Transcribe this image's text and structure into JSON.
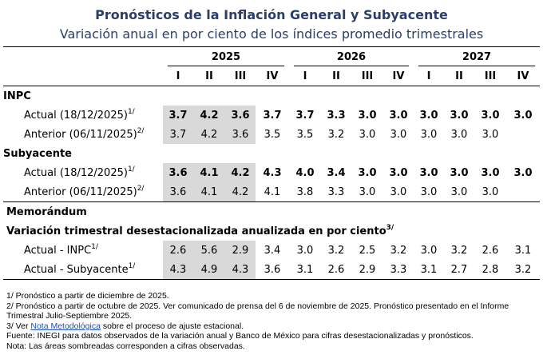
{
  "title": "Pronósticos de la Inflación General y Subyacente",
  "subtitle": "Variación anual en por ciento de los índices promedio trimestrales",
  "years": [
    "2025",
    "2026",
    "2027"
  ],
  "quarters": [
    "I",
    "II",
    "III",
    "IV",
    "I",
    "II",
    "III",
    "IV",
    "I",
    "II",
    "III",
    "IV"
  ],
  "sections": {
    "inpc": "INPC",
    "subyacente": "Subyacente",
    "memorandum": "Memorándum",
    "variacion": "Variación trimestral desestacionalizada anualizada en por ciento"
  },
  "rows": {
    "inpc_actual": {
      "label": "Actual (18/12/2025)",
      "sup": "1/",
      "values": [
        "3.7",
        "4.2",
        "3.6",
        "3.7",
        "3.7",
        "3.3",
        "3.0",
        "3.0",
        "3.0",
        "3.0",
        "3.0",
        "3.0"
      ]
    },
    "inpc_anterior": {
      "label": "Anterior (06/11/2025)",
      "sup": "2/",
      "values": [
        "3.7",
        "4.2",
        "3.6",
        "3.5",
        "3.5",
        "3.2",
        "3.0",
        "3.0",
        "3.0",
        "3.0",
        "3.0"
      ]
    },
    "sub_actual": {
      "label": "Actual (18/12/2025)",
      "sup": "1/",
      "values": [
        "3.6",
        "4.1",
        "4.2",
        "4.3",
        "4.0",
        "3.4",
        "3.0",
        "3.0",
        "3.0",
        "3.0",
        "3.0",
        "3.0"
      ]
    },
    "sub_anterior": {
      "label": "Anterior (06/11/2025)",
      "sup": "2/",
      "values": [
        "3.6",
        "4.1",
        "4.2",
        "4.1",
        "3.8",
        "3.3",
        "3.0",
        "3.0",
        "3.0",
        "3.0",
        "3.0"
      ]
    },
    "memo_inpc": {
      "label": "Actual - INPC",
      "sup": "1/",
      "values": [
        "2.6",
        "5.6",
        "2.9",
        "3.4",
        "3.0",
        "3.2",
        "2.5",
        "3.2",
        "3.0",
        "3.2",
        "2.6",
        "3.1"
      ]
    },
    "memo_sub": {
      "label": "Actual - Subyacente",
      "sup": "1/",
      "values": [
        "4.3",
        "4.9",
        "4.3",
        "3.6",
        "3.1",
        "2.6",
        "2.9",
        "3.3",
        "3.1",
        "2.7",
        "2.8",
        "3.2"
      ]
    }
  },
  "variacion_sup": "3/",
  "notes": {
    "n1": "1/ Pronóstico a partir de diciembre de 2025.",
    "n2": "2/ Pronóstico a partir de octubre de 2025. Ver comunicado de prensa del 6 de noviembre de 2025. Pronóstico presentado en el Informe Trimestral Julio-Septiembre 2025.",
    "n3_pre": "3/ Ver ",
    "n3_link": "Nota Metodológica",
    "n3_post": " sobre el proceso de ajuste estacional.",
    "fuente": "Fuente: INEGI para datos observados de la variación anual y Banco de México para cifras desestacionalizadas y pronósticos.",
    "nota": "Nota: Las áreas sombreadas corresponden a cifras observadas."
  }
}
